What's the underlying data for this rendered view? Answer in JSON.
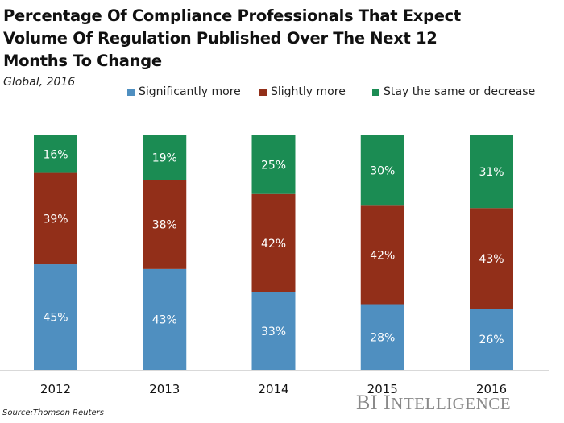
{
  "header": {
    "title": "Percentage Of Compliance Professionals That Expect Volume Of Regulation Published Over The Next 12 Months To Change",
    "subtitle": "Global, 2016"
  },
  "footer": {
    "source": "Source:Thomson Reuters",
    "brand_big_1": "BI ",
    "brand_big_2": "I",
    "brand_small": "NTELLIGENCE"
  },
  "colors": {
    "significantly_more": "#4f8fc0",
    "slightly_more": "#922f19",
    "stay_same": "#1b8c53",
    "label_text": "#ffffff",
    "axis_line": "#d9d9d9"
  },
  "chart_data": {
    "type": "bar",
    "stacked": true,
    "title": "Percentage Of Compliance Professionals That Expect Volume Of Regulation Published Over The Next 12 Months To Change",
    "subtitle": "Global, 2016",
    "xlabel": "",
    "ylabel": "",
    "ylim": [
      0,
      100
    ],
    "grid": false,
    "legend_position": "top-right",
    "categories": [
      "2012",
      "2013",
      "2014",
      "2015",
      "2016"
    ],
    "series": [
      {
        "name": "Significantly more",
        "color": "#4f8fc0",
        "values": [
          45,
          43,
          33,
          28,
          26
        ]
      },
      {
        "name": "Slightly more",
        "color": "#922f19",
        "values": [
          39,
          38,
          42,
          42,
          43
        ]
      },
      {
        "name": "Stay the same or decrease",
        "color": "#1b8c53",
        "values": [
          16,
          19,
          25,
          30,
          31
        ]
      }
    ],
    "data_label_suffix": "%",
    "source": "Source:Thomson Reuters"
  }
}
